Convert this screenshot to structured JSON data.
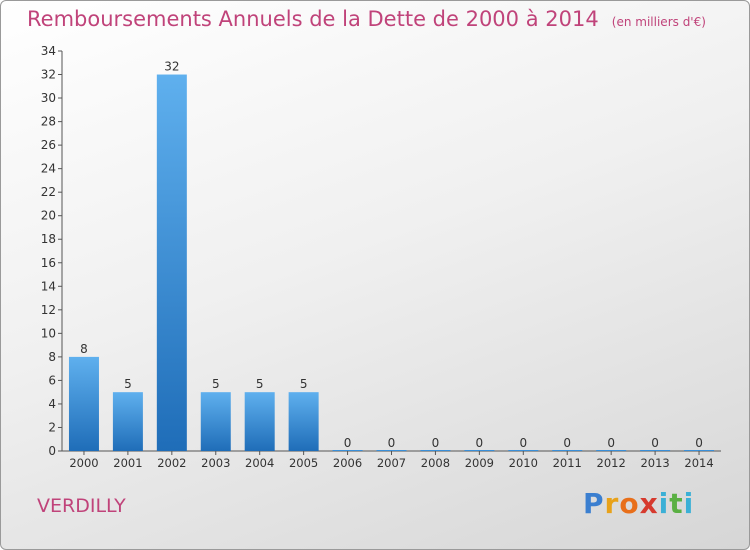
{
  "chart_data": {
    "type": "bar",
    "title": "Remboursements Annuels de la Dette de 2000 à 2014",
    "subtitle": "(en milliers d'€)",
    "categories": [
      "2000",
      "2001",
      "2002",
      "2003",
      "2004",
      "2005",
      "2006",
      "2007",
      "2008",
      "2009",
      "2010",
      "2011",
      "2012",
      "2013",
      "2014"
    ],
    "values": [
      8,
      5,
      32,
      5,
      5,
      5,
      0,
      0,
      0,
      0,
      0,
      0,
      0,
      0,
      0
    ],
    "ylim": [
      0,
      34
    ],
    "yticks": [
      0,
      2,
      4,
      6,
      8,
      10,
      12,
      14,
      16,
      18,
      20,
      22,
      24,
      26,
      28,
      30,
      32,
      34
    ],
    "grid": false,
    "bar_color": "#3a8fd8"
  },
  "commune": "VERDILLY",
  "logo": {
    "letters": [
      "P",
      "r",
      "o",
      "x",
      "i",
      "t",
      "i"
    ],
    "colors": [
      "#3b7fd0",
      "#e8a21a",
      "#e86f1a",
      "#d63a2e",
      "#3bb0d6",
      "#5ab043",
      "#3bb0d6"
    ]
  }
}
